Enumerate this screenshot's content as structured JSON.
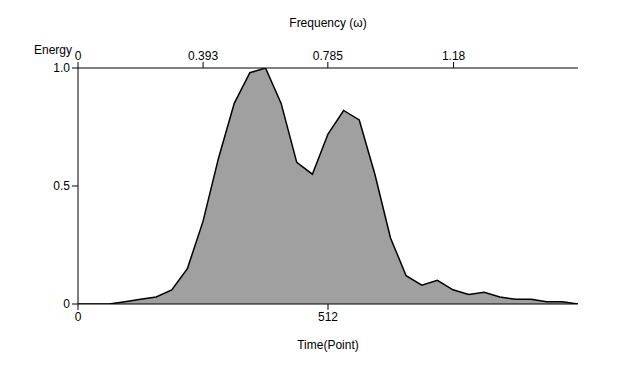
{
  "chart_data": {
    "type": "area",
    "x_label": "Time(Point)",
    "y_label": "Energy",
    "x2_label": "Frequency (ω)",
    "x": [
      0,
      32,
      64,
      96,
      128,
      160,
      192,
      224,
      256,
      288,
      320,
      352,
      384,
      416,
      448,
      480,
      512,
      544,
      576,
      608,
      640,
      672,
      704,
      736,
      768,
      800,
      832,
      864,
      896,
      928,
      960,
      992,
      1024
    ],
    "values": [
      0,
      0,
      0,
      0.01,
      0.02,
      0.03,
      0.06,
      0.15,
      0.35,
      0.62,
      0.85,
      0.98,
      1.0,
      0.85,
      0.6,
      0.55,
      0.72,
      0.82,
      0.78,
      0.55,
      0.28,
      0.12,
      0.08,
      0.1,
      0.06,
      0.04,
      0.05,
      0.03,
      0.02,
      0.02,
      0.01,
      0.01,
      0
    ],
    "xlim": [
      0,
      1024
    ],
    "xticks": [
      0,
      512
    ],
    "ylim": [
      0,
      1
    ],
    "yticks": [
      0,
      0.5,
      {
        "value": 1,
        "label": "1.0"
      }
    ],
    "x2lim": [
      0,
      1.571
    ],
    "x2ticks": [
      0,
      0.393,
      0.785,
      1.18
    ],
    "color": "#888888",
    "grid": false
  }
}
